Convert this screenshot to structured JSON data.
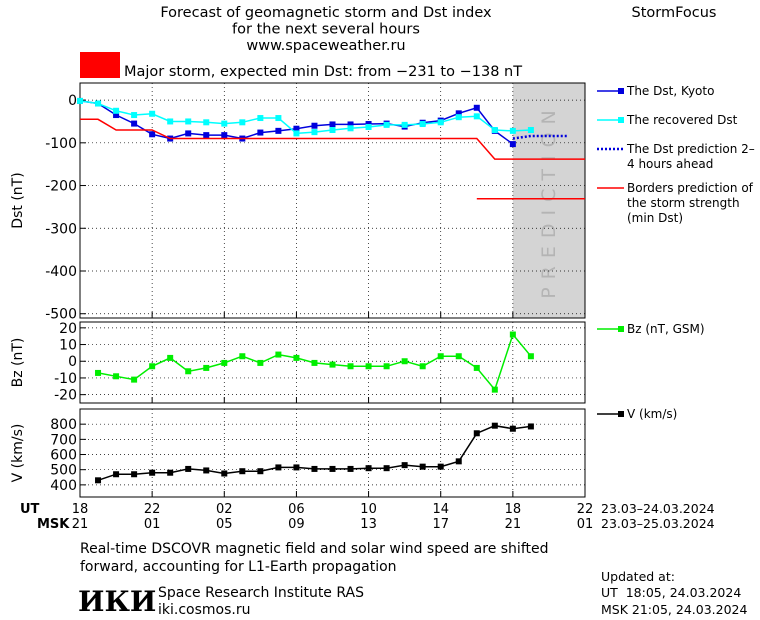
{
  "header": {
    "title_lines": [
      "Forecast of geomagnetic storm and Dst index",
      "for the next several hours",
      "www.spaceweather.ru"
    ],
    "brand": "StormFocus"
  },
  "chart_data": [
    {
      "type": "line",
      "y_label": "Dst (nT)",
      "xlim": [
        0,
        28
      ],
      "ylim": [
        -510,
        40
      ],
      "yticks": [
        0,
        -100,
        -200,
        -300,
        -400,
        -500
      ],
      "grid": true,
      "banner": {
        "text": "Major storm, expected min Dst: from −231 to −138 nT",
        "color": "#ff0000"
      },
      "prediction_region": {
        "label": "PREDICTION",
        "start": 24,
        "color": "#d4d4d4"
      },
      "series": [
        {
          "name": "The Dst, Kyoto",
          "color": "#0000dd",
          "marker": "square",
          "x": [
            0,
            1,
            2,
            3,
            4,
            5,
            6,
            7,
            8,
            9,
            10,
            11,
            12,
            13,
            14,
            15,
            16,
            17,
            18,
            19,
            20,
            21,
            22,
            23,
            24
          ],
          "values": [
            -2,
            -8,
            -35,
            -55,
            -80,
            -90,
            -78,
            -82,
            -82,
            -90,
            -76,
            -72,
            -67,
            -60,
            -57,
            -57,
            -56,
            -55,
            -62,
            -53,
            -48,
            -31,
            -18,
            -72,
            -103
          ]
        },
        {
          "name": "The recovered Dst",
          "color": "#00ffff",
          "marker": "square",
          "x": [
            0,
            1,
            2,
            3,
            4,
            5,
            6,
            7,
            8,
            9,
            10,
            11,
            12,
            13,
            14,
            15,
            16,
            17,
            18,
            19,
            20,
            21,
            22,
            23,
            24,
            25
          ],
          "values": [
            -2,
            -8,
            -25,
            -35,
            -32,
            -50,
            -50,
            -52,
            -55,
            -52,
            -42,
            -42,
            -78,
            -75,
            -70,
            -66,
            -63,
            -58,
            -58,
            -56,
            -52,
            -40,
            -38,
            -70,
            -72,
            -70
          ]
        },
        {
          "name": "The Dst prediction 2–4 hours ahead",
          "color": "#0000dd",
          "dash": "2,2",
          "x": [
            24,
            25,
            26,
            27
          ],
          "values": [
            -90,
            -84,
            -84,
            -84
          ]
        },
        {
          "name": "Borders prediction of the storm strength (min Dst)",
          "color": "#ff0000",
          "x": [
            0,
            1,
            2,
            4,
            5,
            22,
            23,
            28,
            28,
            22,
            28
          ],
          "values": [
            -45,
            -45,
            -70,
            -70,
            -90,
            -90,
            -138,
            -138,
            null,
            -231,
            -231
          ]
        }
      ]
    },
    {
      "type": "line",
      "y_label": "Bz (nT)",
      "xlim": [
        0,
        28
      ],
      "ylim": [
        -25,
        23.5
      ],
      "yticks": [
        20,
        10,
        0,
        -10,
        -20
      ],
      "grid": true,
      "series": [
        {
          "name": "Bz (nT, GSM)",
          "color": "#00ee00",
          "marker": "square",
          "x": [
            1,
            2,
            3,
            4,
            5,
            6,
            7,
            8,
            9,
            10,
            11,
            12,
            13,
            14,
            15,
            16,
            17,
            18,
            19,
            20,
            21,
            22,
            23,
            24,
            25
          ],
          "values": [
            -7,
            -9,
            -11,
            -3,
            2,
            -6,
            -4,
            -1,
            3,
            -1,
            4,
            2,
            -1,
            -2,
            -3,
            -3,
            -3,
            0,
            -3,
            3,
            3,
            -4,
            -17,
            16,
            3
          ]
        }
      ]
    },
    {
      "type": "line",
      "y_label": "V (km/s)",
      "xlim": [
        0,
        28
      ],
      "ylim": [
        320,
        900
      ],
      "yticks": [
        800,
        700,
        600,
        500,
        400
      ],
      "grid": true,
      "xticks": [
        {
          "value": 0,
          "label": "18"
        },
        {
          "value": 4,
          "label": "22"
        },
        {
          "value": 8,
          "label": "02"
        },
        {
          "value": 12,
          "label": "06"
        },
        {
          "value": 16,
          "label": "10"
        },
        {
          "value": 20,
          "label": "14"
        },
        {
          "value": 24,
          "label": "18"
        },
        {
          "value": 28,
          "label": "22"
        }
      ],
      "xticks_msk": [
        {
          "value": 0,
          "label": "21"
        },
        {
          "value": 4,
          "label": "01"
        },
        {
          "value": 8,
          "label": "05"
        },
        {
          "value": 12,
          "label": "09"
        },
        {
          "value": 16,
          "label": "13"
        },
        {
          "value": 20,
          "label": "17"
        },
        {
          "value": 24,
          "label": "21"
        },
        {
          "value": 28,
          "label": "01"
        }
      ],
      "x_row_labels": [
        "UT",
        "MSK"
      ],
      "x_date_ranges": [
        "23.03–24.03.2024",
        "23.03–25.03.2024"
      ],
      "series": [
        {
          "name": "V (km/s)",
          "color": "#000000",
          "marker": "square",
          "x": [
            1,
            2,
            3,
            4,
            5,
            6,
            7,
            8,
            9,
            10,
            11,
            12,
            13,
            14,
            15,
            16,
            17,
            18,
            19,
            20,
            21,
            22,
            23,
            24,
            25
          ],
          "values": [
            430,
            470,
            470,
            480,
            480,
            505,
            495,
            475,
            490,
            490,
            515,
            515,
            505,
            505,
            505,
            510,
            510,
            530,
            520,
            520,
            555,
            740,
            790,
            770,
            785
          ]
        }
      ]
    }
  ],
  "footer": {
    "note_lines": [
      "Real-time DSCOVR magnetic field and solar wind speed are shifted",
      "forward, accounting for L1-Earth propagation"
    ],
    "logo": "ИКИ",
    "institute": "Space Research Institute RAS",
    "site": "iki.cosmos.ru",
    "updated_label": "Updated at:",
    "updated_lines": [
      "UT  18:05, 24.03.2024",
      "MSK 21:05, 24.03.2024"
    ]
  }
}
